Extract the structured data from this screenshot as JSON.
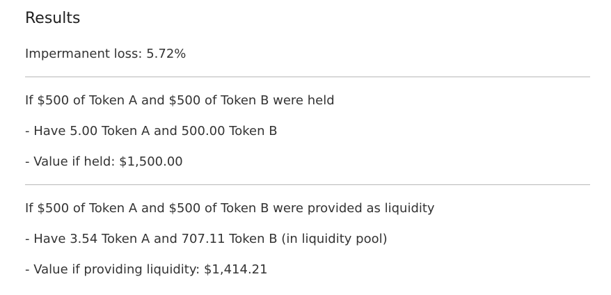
{
  "results": {
    "title": "Results",
    "impermanent_loss": "Impermanent loss: 5.72%",
    "held": {
      "heading": "If $500 of Token A and $500 of Token B were held",
      "have": "- Have 5.00 Token A and 500.00 Token B",
      "value": "- Value if held: $1,500.00"
    },
    "liquidity": {
      "heading": "If $500 of Token A and $500 of Token B were provided as liquidity",
      "have": "- Have 3.54 Token A and 707.11 Token B (in liquidity pool)",
      "value": "- Value if providing liquidity: $1,414.21"
    }
  }
}
